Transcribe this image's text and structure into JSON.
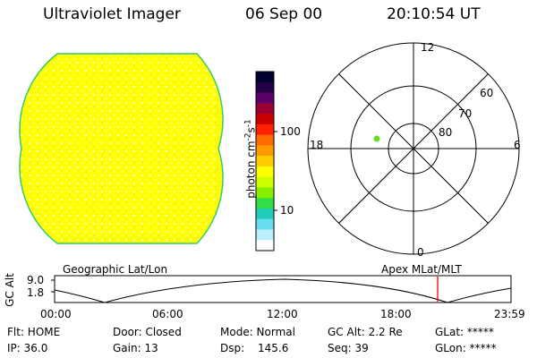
{
  "header": {
    "title": "Ultraviolet Imager",
    "date": "06 Sep 00",
    "time": "20:10:54 UT"
  },
  "colorbar": {
    "label": "photon cm",
    "label_exp1": "-2",
    "label_mid": "s",
    "label_exp2": "-1",
    "tick_100": "100",
    "tick_10": "10",
    "colors": [
      "#000033",
      "#220044",
      "#5a0066",
      "#990033",
      "#cc0000",
      "#ff2200",
      "#ff6a00",
      "#ff9900",
      "#ffcc00",
      "#ffff00",
      "#ccff00",
      "#88ee00",
      "#33dd44",
      "#22ccbb",
      "#66ddee",
      "#bbeeff",
      "#ffffff"
    ]
  },
  "polar": {
    "label_12": "12",
    "label_18": "18",
    "label_6": "6",
    "label_0": "0",
    "lat_60": "60",
    "lat_70": "70",
    "lat_80": "80"
  },
  "timeline": {
    "left_label": "Geographic Lat/Lon",
    "right_label": "Apex  MLat/MLT",
    "axis_title": "GC Alt",
    "y_top": "9.0",
    "y_bottom": "1.8",
    "x_ticks": [
      "00:00",
      "06:00",
      "12:00",
      "18:00",
      "23:59"
    ],
    "marker_time": "20:10:54"
  },
  "status": {
    "flt": "Flt: HOME",
    "ip": "IP: 36.0",
    "door": "Door: Closed",
    "gain": "Gain: 13",
    "mode": "Mode: Normal",
    "dsp_label": "Dsp:",
    "dsp_value": "145.6",
    "gc_alt": "GC Alt: 2.2 Re",
    "seq": "Seq: 39",
    "glat": "GLat: *****",
    "glon": "GLon: *****"
  }
}
